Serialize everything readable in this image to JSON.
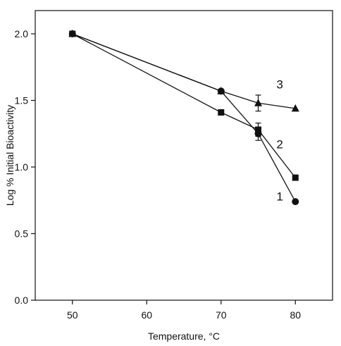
{
  "chart_data": {
    "type": "line",
    "title": "",
    "xlabel": "Temperature, °C",
    "ylabel": "Log % Initial Bioactivity",
    "xlim": [
      45,
      85
    ],
    "ylim": [
      0.0,
      2.0
    ],
    "xticks": [
      50,
      60,
      70,
      80
    ],
    "xtick_labels": [
      "50",
      "60",
      "70",
      "80"
    ],
    "yticks": [
      0.0,
      0.5,
      1.0,
      1.5,
      2.0
    ],
    "ytick_labels": [
      "0.0",
      "0.5",
      "1.0",
      "1.5",
      "2.0"
    ],
    "grid": false,
    "series": [
      {
        "name": "1",
        "marker": "circle",
        "x": [
          50,
          70,
          75,
          80
        ],
        "y": [
          2.0,
          1.57,
          1.25,
          0.74
        ],
        "yerr": [
          0,
          0,
          0.05,
          0
        ]
      },
      {
        "name": "2",
        "marker": "square",
        "x": [
          50,
          70,
          75,
          80
        ],
        "y": [
          2.0,
          1.41,
          1.28,
          0.92
        ],
        "yerr": [
          0,
          0,
          0.05,
          0
        ]
      },
      {
        "name": "3",
        "marker": "triangle",
        "x": [
          50,
          70,
          75,
          80
        ],
        "y": [
          2.0,
          1.57,
          1.48,
          1.44
        ],
        "yerr": [
          0,
          0,
          0.06,
          0
        ]
      }
    ],
    "series_labels": [
      {
        "text": "1",
        "x": 77.9,
        "y": 0.75
      },
      {
        "text": "2",
        "x": 77.9,
        "y": 1.14
      },
      {
        "text": "3",
        "x": 77.9,
        "y": 1.59
      }
    ]
  }
}
